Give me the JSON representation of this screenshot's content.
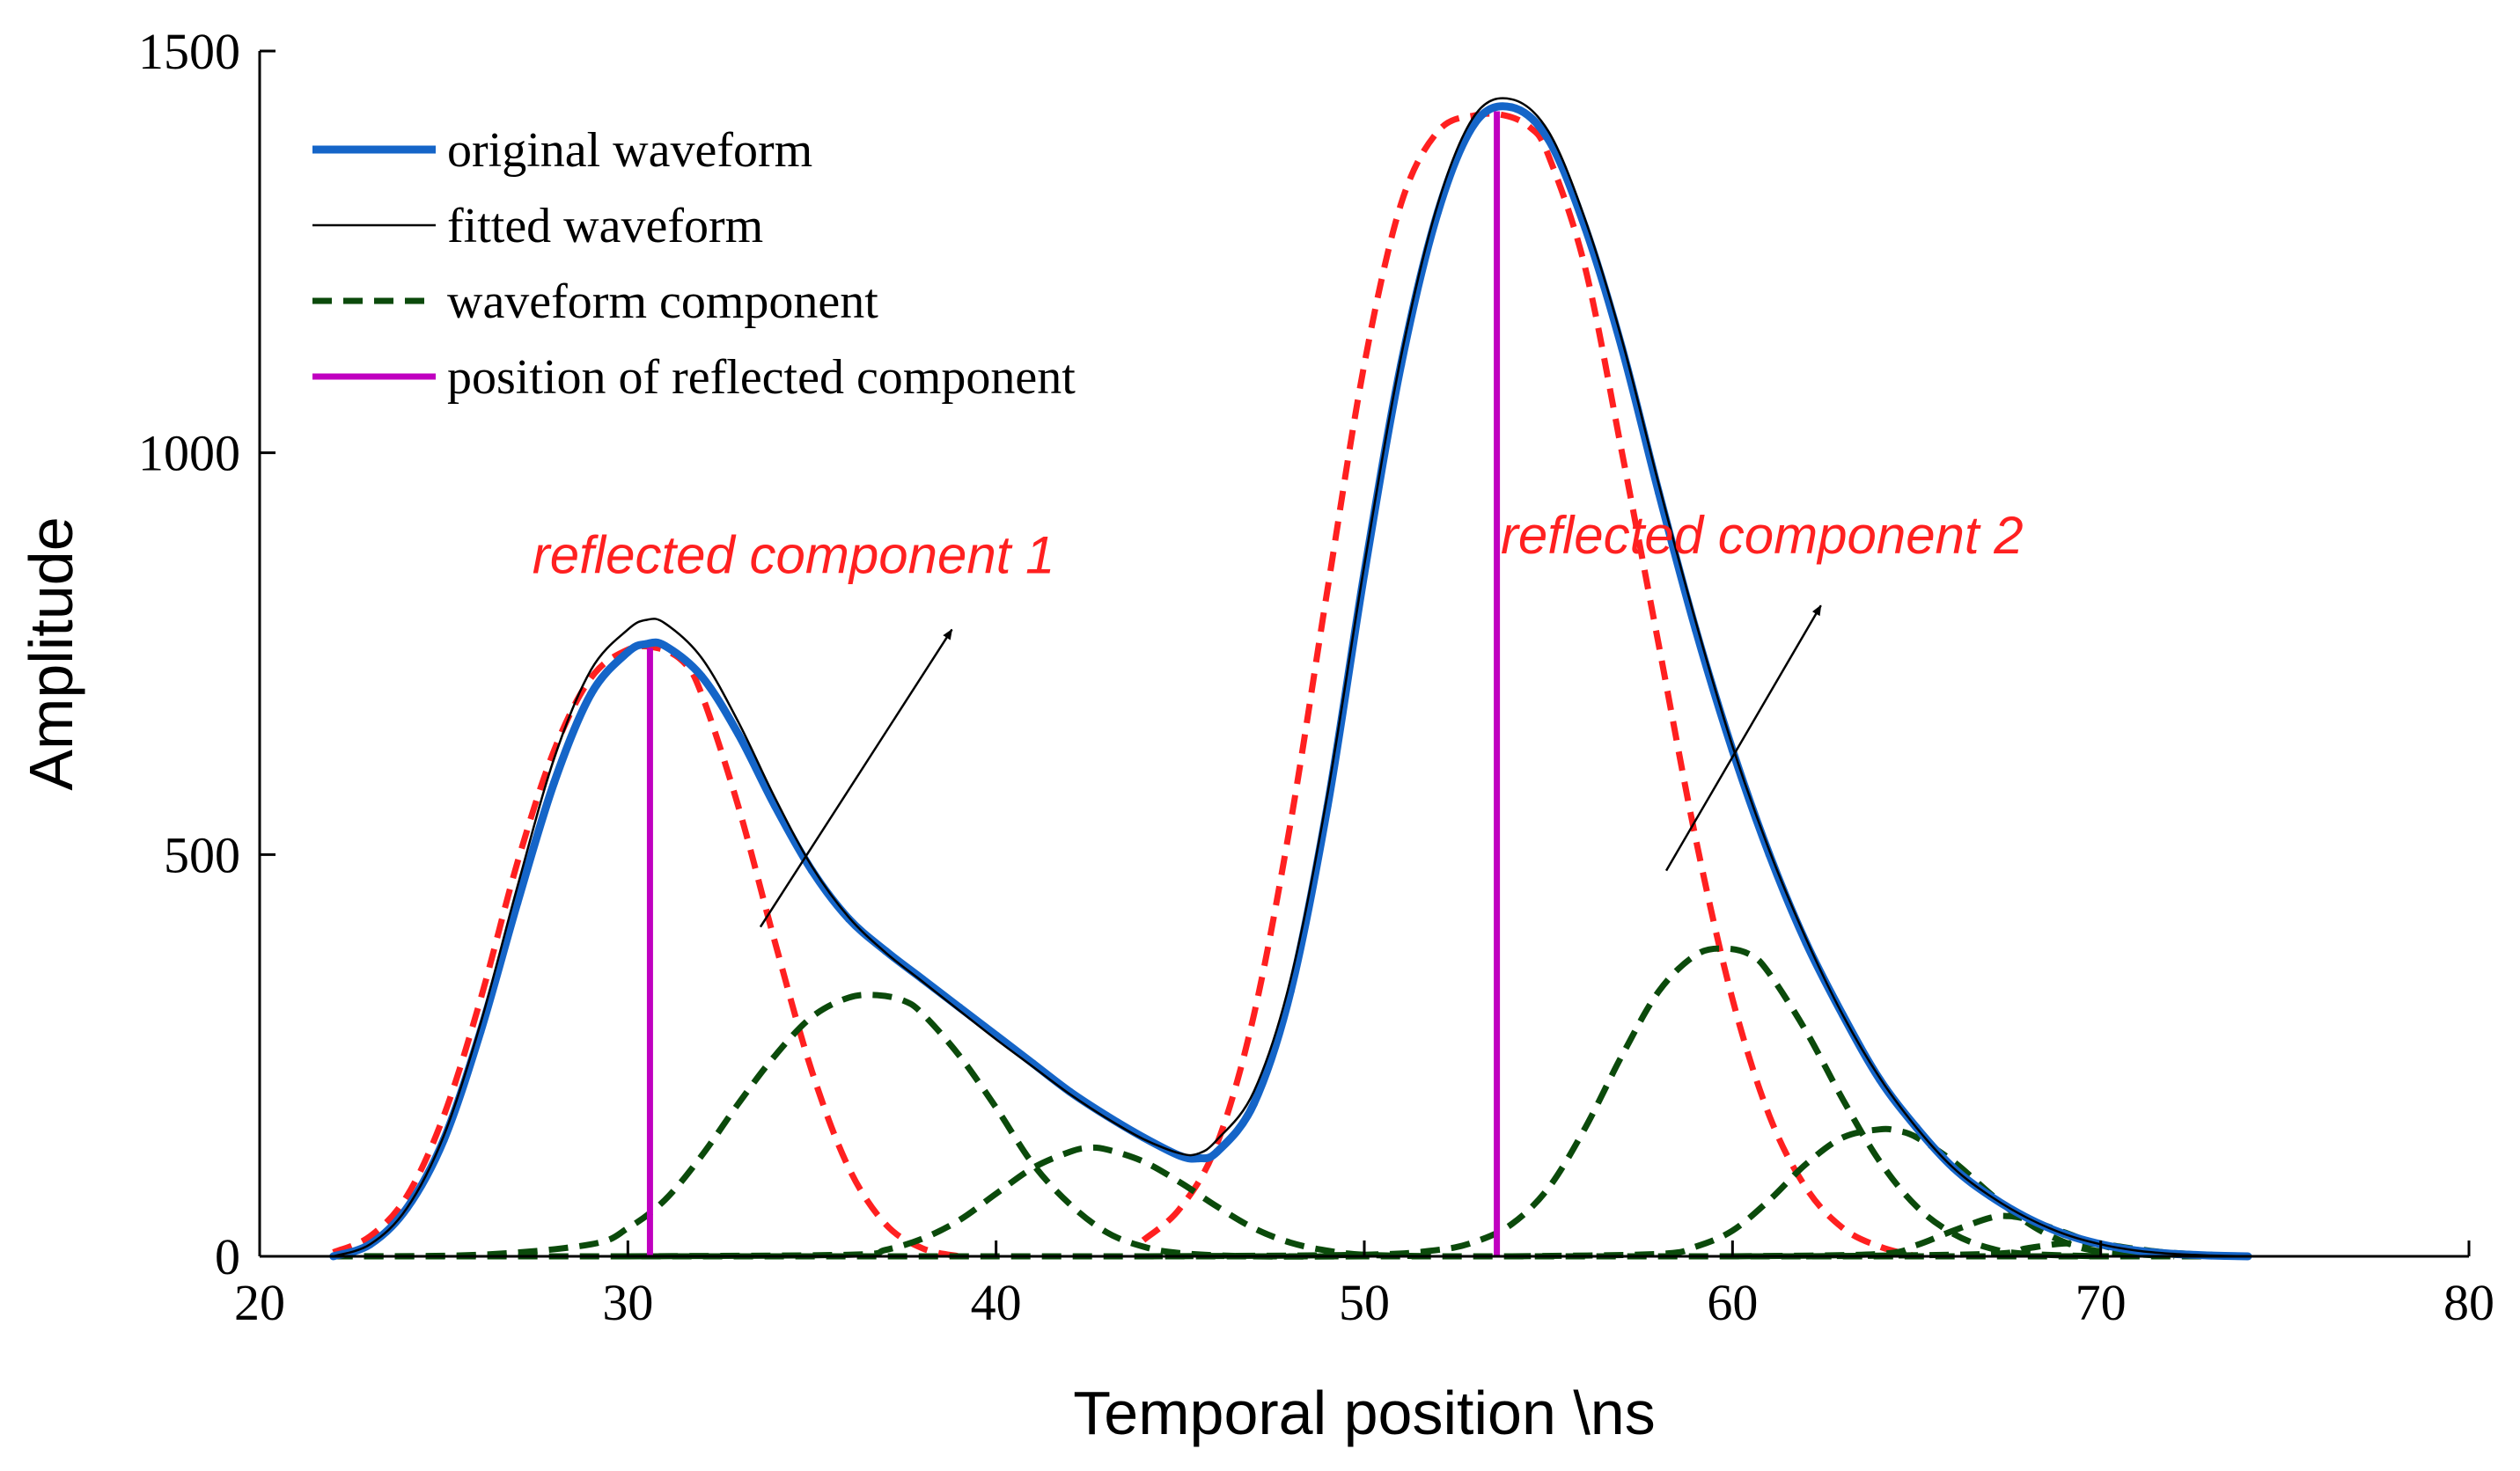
{
  "chart_data": {
    "type": "line",
    "title": "",
    "xlabel": "Temporal position \\ns",
    "ylabel": "Amplitude",
    "xlim": [
      20,
      80
    ],
    "ylim": [
      0,
      1500
    ],
    "xticks": [
      20,
      30,
      40,
      50,
      60,
      70,
      80
    ],
    "yticks": [
      0,
      500,
      1000,
      1500
    ],
    "grid": false,
    "legend_position": "top-left",
    "legend": [
      {
        "key": "original",
        "label": "original waveform",
        "color": "#1565c8"
      },
      {
        "key": "fitted",
        "label": "fitted waveform",
        "color": "#000000"
      },
      {
        "key": "component",
        "label": "waveform component",
        "color": "#0b4a0b"
      },
      {
        "key": "position",
        "label": "position of reflected component",
        "color": "#c000c0"
      }
    ],
    "series": [
      {
        "key": "original",
        "name": "original waveform",
        "color": "#1565c8",
        "x": [
          22,
          23,
          24,
          25,
          26,
          27,
          28,
          29,
          30,
          30.5,
          31,
          32,
          33,
          34,
          35,
          36,
          37,
          38,
          39,
          40,
          41,
          42,
          43,
          44,
          45,
          45.5,
          46,
          47,
          48,
          49,
          50,
          51,
          52,
          53,
          54,
          55,
          56,
          57,
          58,
          59,
          60,
          61,
          62,
          63,
          64,
          65,
          66,
          67,
          68,
          69,
          70,
          71,
          72,
          73,
          74
        ],
        "y": [
          0,
          15,
          60,
          145,
          280,
          440,
          590,
          700,
          752,
          762,
          760,
          722,
          650,
          560,
          480,
          420,
          380,
          345,
          310,
          275,
          240,
          205,
          175,
          148,
          125,
          122,
          130,
          190,
          330,
          560,
          850,
          1110,
          1300,
          1410,
          1430,
          1390,
          1280,
          1130,
          950,
          780,
          630,
          500,
          390,
          300,
          220,
          160,
          110,
          75,
          48,
          28,
          15,
          7,
          3,
          1,
          0
        ]
      },
      {
        "key": "fitted",
        "name": "fitted waveform",
        "color": "#000000",
        "x": [
          22,
          23,
          24,
          25,
          26,
          27,
          28,
          29,
          30,
          30.5,
          31,
          32,
          33,
          34,
          35,
          36,
          37,
          38,
          39,
          40,
          41,
          42,
          43,
          44,
          45,
          45.5,
          46,
          47,
          48,
          49,
          50,
          51,
          52,
          53,
          54,
          55,
          56,
          57,
          58,
          59,
          60,
          61,
          62,
          63,
          64,
          65,
          66,
          67,
          68,
          69,
          70,
          71,
          72,
          73,
          74
        ],
        "y": [
          0,
          15,
          60,
          150,
          290,
          460,
          620,
          730,
          780,
          792,
          788,
          745,
          665,
          570,
          485,
          422,
          378,
          342,
          306,
          270,
          236,
          202,
          172,
          146,
          128,
          128,
          145,
          205,
          345,
          575,
          860,
          1120,
          1310,
          1420,
          1440,
          1400,
          1290,
          1140,
          960,
          790,
          635,
          505,
          395,
          300,
          222,
          160,
          110,
          75,
          48,
          28,
          15,
          7,
          3,
          1,
          0
        ]
      },
      {
        "key": "component",
        "name": "reflected component 1",
        "color": "#ff2020",
        "dashed": true,
        "x": [
          22,
          23,
          24,
          25,
          26,
          27,
          28,
          29,
          30,
          30.8,
          31.5,
          32,
          33,
          34,
          35,
          36,
          37,
          38,
          39
        ],
        "y": [
          5,
          25,
          75,
          175,
          320,
          490,
          630,
          720,
          755,
          757,
          740,
          700,
          560,
          390,
          230,
          110,
          40,
          10,
          0
        ]
      },
      {
        "key": "component",
        "name": "reflected component 2",
        "color": "#ff2020",
        "dashed": true,
        "x": [
          44,
          45,
          46,
          47,
          48,
          49,
          50,
          51,
          52,
          53,
          53.8,
          54.5,
          55,
          56,
          57,
          58,
          59,
          60,
          61,
          62,
          63,
          64,
          65
        ],
        "y": [
          20,
          60,
          140,
          300,
          540,
          830,
          1110,
          1310,
          1400,
          1420,
          1420,
          1405,
          1370,
          1230,
          1000,
          760,
          520,
          320,
          175,
          85,
          35,
          12,
          0
        ]
      },
      {
        "key": "component",
        "name": "waveform component",
        "color": "#0b4a0b",
        "dashed": true,
        "x": [
          22,
          26,
          29,
          30,
          31,
          32,
          33,
          34,
          35,
          36,
          36.8,
          37.5,
          38,
          39,
          40,
          41,
          42,
          43,
          44,
          45,
          47,
          50
        ],
        "y": [
          0,
          2,
          15,
          35,
          70,
          125,
          190,
          250,
          298,
          322,
          325,
          318,
          302,
          250,
          185,
          115,
          65,
          30,
          12,
          4,
          0,
          0
        ]
      },
      {
        "key": "component",
        "name": "waveform component",
        "color": "#0b4a0b",
        "dashed": true,
        "x": [
          30,
          36,
          37,
          38,
          39,
          40,
          41,
          42,
          42.5,
          43,
          44,
          45,
          46,
          47,
          48,
          49,
          50,
          52
        ],
        "y": [
          0,
          2,
          8,
          22,
          45,
          78,
          110,
          130,
          135,
          133,
          118,
          92,
          62,
          35,
          17,
          7,
          2,
          0
        ]
      },
      {
        "key": "component",
        "name": "waveform component",
        "color": "#0b4a0b",
        "dashed": true,
        "x": [
          44,
          50,
          52,
          53,
          54,
          55,
          56,
          57,
          58,
          59,
          59.8,
          60.5,
          61,
          62,
          63,
          64,
          65,
          66,
          67,
          68,
          70
        ],
        "y": [
          0,
          2,
          8,
          18,
          40,
          85,
          160,
          250,
          330,
          375,
          383,
          375,
          352,
          280,
          195,
          118,
          62,
          28,
          10,
          3,
          0
        ]
      },
      {
        "key": "component",
        "name": "waveform component",
        "color": "#0b4a0b",
        "dashed": true,
        "x": [
          54,
          58,
          59,
          60,
          61,
          62,
          63,
          64,
          64.5,
          65,
          66,
          67,
          68,
          69,
          70,
          72
        ],
        "y": [
          0,
          3,
          12,
          32,
          70,
          115,
          148,
          158,
          156,
          148,
          118,
          78,
          42,
          18,
          6,
          0
        ]
      },
      {
        "key": "component",
        "name": "waveform component",
        "color": "#0b4a0b",
        "dashed": true,
        "x": [
          60,
          64,
          65,
          66,
          67,
          67.5,
          68,
          69,
          70,
          71,
          73
        ],
        "y": [
          0,
          3,
          14,
          32,
          48,
          50,
          46,
          30,
          14,
          5,
          0
        ]
      },
      {
        "key": "component",
        "name": "waveform component",
        "color": "#0b4a0b",
        "dashed": true,
        "x": [
          62,
          67,
          68,
          69,
          70,
          71,
          72,
          74
        ],
        "y": [
          0,
          3,
          10,
          16,
          15,
          9,
          4,
          0
        ]
      },
      {
        "key": "component",
        "name": "waveform component",
        "color": "#0b4a0b",
        "dashed": true,
        "x": [
          22,
          30,
          40,
          50,
          60,
          70,
          74
        ],
        "y": [
          0,
          0,
          0,
          0,
          0,
          0,
          0
        ]
      }
    ],
    "reflected_positions": [
      {
        "name": "position of reflected component 1",
        "x": 30.6,
        "y": 757,
        "color": "#c000c0"
      },
      {
        "name": "position of reflected component 2",
        "x": 53.6,
        "y": 1425,
        "color": "#c000c0"
      }
    ],
    "annotations": [
      {
        "text": "reflected component 1",
        "color": "#ff2020",
        "arrow_from": [
          33.6,
          410
        ],
        "arrow_to": [
          38.8,
          780
        ],
        "text_anchor": [
          34.5,
          850
        ]
      },
      {
        "text": "reflected component 2",
        "color": "#ff2020",
        "arrow_from": [
          58.2,
          480
        ],
        "arrow_to": [
          62.4,
          810
        ],
        "text_anchor": [
          60.8,
          875
        ]
      }
    ]
  }
}
